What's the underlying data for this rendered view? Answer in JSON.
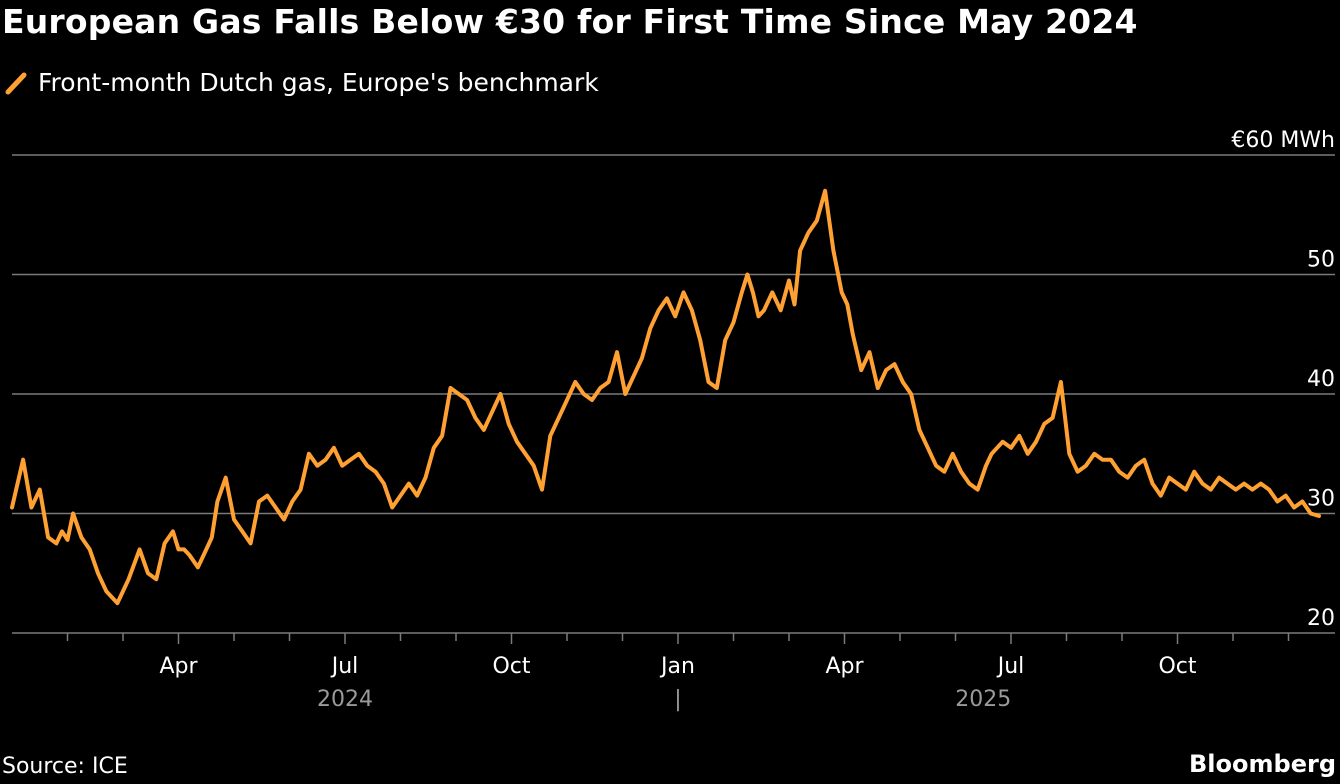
{
  "title": "European Gas Falls Below €30 for First Time Since May 2024",
  "legend_label": "Front-month Dutch gas, Europe's benchmark",
  "source": "Source: ICE",
  "brand": "Bloomberg",
  "colors": {
    "background": "#000000",
    "series": "#FFA033",
    "grid": "#7a7a7a",
    "text": "#ffffff",
    "year_label": "#9a9a9a"
  },
  "chart_data": {
    "type": "line",
    "title": "European Gas Falls Below €30 for First Time Since May 2024",
    "ylabel": "€ MWh",
    "unit_label": "€60 MWh",
    "ylim": [
      20,
      60
    ],
    "yticks": [
      20,
      30,
      40,
      50,
      60
    ],
    "ytick_labels": [
      "20",
      "30",
      "40",
      "50",
      "€60 MWh"
    ],
    "xlim": [
      0,
      24.4
    ],
    "month_labels": [
      {
        "m": 3,
        "label": "Apr"
      },
      {
        "m": 6,
        "label": "Jul"
      },
      {
        "m": 9,
        "label": "Oct"
      },
      {
        "m": 12,
        "label": "Jan"
      },
      {
        "m": 15,
        "label": "Apr"
      },
      {
        "m": 18,
        "label": "Jul"
      },
      {
        "m": 21,
        "label": "Oct"
      }
    ],
    "year_labels": [
      {
        "m": 6,
        "label": "2024"
      },
      {
        "m": 17.5,
        "label": "2025"
      }
    ],
    "year_separator": {
      "m": 12,
      "label": "|"
    },
    "series": [
      {
        "name": "Front-month Dutch gas, Europe's benchmark",
        "x": [
          0,
          0.2,
          0.35,
          0.5,
          0.65,
          0.8,
          0.9,
          1.0,
          1.1,
          1.25,
          1.4,
          1.55,
          1.7,
          1.9,
          2.1,
          2.3,
          2.45,
          2.6,
          2.75,
          2.9,
          3.0,
          3.1,
          3.2,
          3.35,
          3.5,
          3.6,
          3.7,
          3.85,
          4.0,
          4.15,
          4.3,
          4.45,
          4.6,
          4.75,
          4.9,
          5.05,
          5.2,
          5.35,
          5.5,
          5.65,
          5.8,
          5.95,
          6.1,
          6.25,
          6.4,
          6.55,
          6.7,
          6.85,
          7.0,
          7.15,
          7.3,
          7.45,
          7.6,
          7.75,
          7.9,
          8.05,
          8.2,
          8.35,
          8.5,
          8.65,
          8.8,
          8.95,
          9.1,
          9.25,
          9.4,
          9.55,
          9.7,
          9.85,
          10.0,
          10.15,
          10.3,
          10.45,
          10.6,
          10.75,
          10.9,
          11.05,
          11.2,
          11.35,
          11.5,
          11.65,
          11.8,
          11.95,
          12.1,
          12.25,
          12.4,
          12.55,
          12.7,
          12.85,
          13.0,
          13.15,
          13.25,
          13.35,
          13.45,
          13.55,
          13.7,
          13.85,
          14.0,
          14.1,
          14.2,
          14.35,
          14.5,
          14.65,
          14.8,
          14.95,
          15.05,
          15.15,
          15.3,
          15.45,
          15.6,
          15.75,
          15.9,
          16.05,
          16.2,
          16.35,
          16.5,
          16.65,
          16.8,
          16.95,
          17.1,
          17.25,
          17.4,
          17.55,
          17.65,
          17.75,
          17.85,
          18.0,
          18.15,
          18.3,
          18.45,
          18.6,
          18.75,
          18.9,
          19.05,
          19.2,
          19.35,
          19.5,
          19.65,
          19.8,
          19.95,
          20.1,
          20.25,
          20.4,
          20.55,
          20.7,
          20.85,
          21.0,
          21.15,
          21.3,
          21.45,
          21.6,
          21.75,
          21.9,
          22.05,
          22.2,
          22.35,
          22.5,
          22.65,
          22.8,
          22.95,
          23.1,
          23.25,
          23.4,
          23.55
        ],
        "values": [
          30.5,
          34.5,
          30.5,
          32.0,
          28.0,
          27.5,
          28.5,
          27.8,
          30.0,
          28.0,
          27.0,
          25.0,
          23.5,
          22.5,
          24.5,
          27.0,
          25.0,
          24.5,
          27.5,
          28.5,
          27.0,
          27.0,
          26.5,
          25.5,
          27.0,
          28.0,
          31.0,
          33.0,
          29.5,
          28.5,
          27.5,
          31.0,
          31.5,
          30.5,
          29.5,
          31.0,
          32.0,
          35.0,
          34.0,
          34.5,
          35.5,
          34.0,
          34.5,
          35.0,
          34.0,
          33.5,
          32.5,
          30.5,
          31.5,
          32.5,
          31.5,
          33.0,
          35.5,
          36.5,
          40.5,
          40.0,
          39.5,
          38.0,
          37.0,
          38.5,
          40.0,
          37.5,
          36.0,
          35.0,
          34.0,
          32.0,
          36.5,
          38.0,
          39.5,
          41.0,
          40.0,
          39.5,
          40.5,
          41.0,
          43.5,
          40.0,
          41.5,
          43.0,
          45.5,
          47.0,
          48.0,
          46.5,
          48.5,
          47.0,
          44.5,
          41.0,
          40.5,
          44.5,
          46.0,
          48.5,
          50.0,
          48.5,
          46.5,
          47.0,
          48.5,
          47.0,
          49.5,
          47.5,
          52.0,
          53.5,
          54.5,
          57.0,
          52.0,
          48.5,
          47.5,
          45.0,
          42.0,
          43.5,
          40.5,
          42.0,
          42.5,
          41.0,
          40.0,
          37.0,
          35.5,
          34.0,
          33.5,
          35.0,
          33.5,
          32.5,
          32.0,
          34.0,
          35.0,
          35.5,
          36.0,
          35.5,
          36.5,
          35.0,
          36.0,
          37.5,
          38.0,
          41.0,
          35.0,
          33.5,
          34.0,
          35.0,
          34.5,
          34.5,
          33.5,
          33.0,
          34.0,
          34.5,
          32.5,
          31.5,
          33.0,
          32.5,
          32.0,
          33.5,
          32.5,
          32.0,
          33.0,
          32.5,
          32.0,
          32.5,
          32.0,
          32.5,
          32.0,
          31.0,
          31.5,
          30.5,
          31.0,
          30.0,
          29.8
        ]
      }
    ]
  }
}
